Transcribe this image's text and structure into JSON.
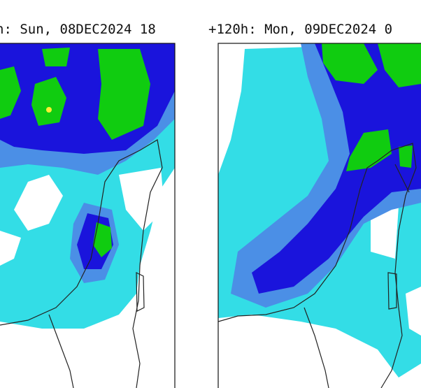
{
  "panels": [
    {
      "title": "h: Sun, 08DEC2024 18"
    },
    {
      "title": "+120h: Mon, 09DEC2024 0"
    }
  ]
}
